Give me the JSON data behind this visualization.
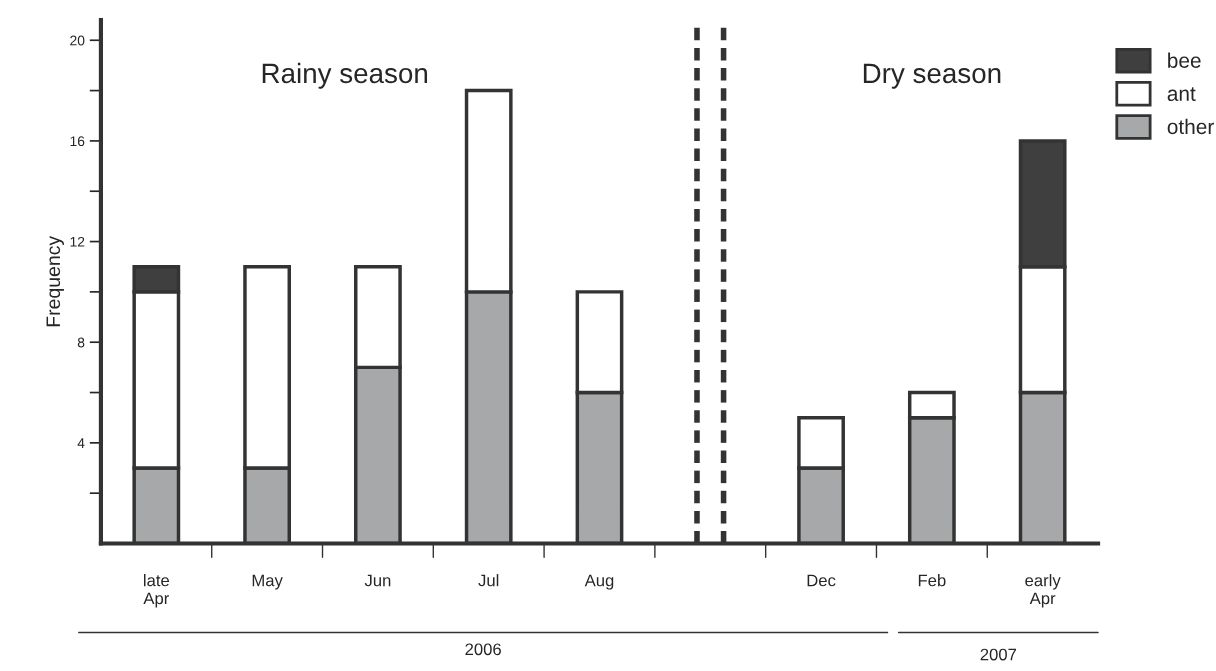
{
  "chart_data": {
    "type": "bar",
    "stacked": true,
    "ylabel": "Frequency",
    "categories": [
      "late\nApr",
      "May",
      "Jun",
      "Jul",
      "Aug",
      null,
      "Dec",
      "Feb",
      "early\nApr"
    ],
    "series": [
      {
        "name": "other",
        "color": "#a7a8aa",
        "values": [
          3,
          3,
          7,
          10,
          6,
          null,
          3,
          5,
          6
        ]
      },
      {
        "name": "ant",
        "color": "#ffffff",
        "values": [
          7,
          8,
          4,
          8,
          4,
          null,
          2,
          1,
          5
        ]
      },
      {
        "name": "bee",
        "color": "#3f3f3f",
        "values": [
          1,
          null,
          null,
          null,
          null,
          null,
          null,
          null,
          5
        ]
      }
    ],
    "ylim": [
      0,
      20.8
    ],
    "yticks": [
      {
        "value": 2,
        "label": null
      },
      4,
      {
        "value": 6,
        "label": null
      },
      8,
      {
        "value": 10,
        "label": null
      },
      12,
      {
        "value": 14,
        "label": null
      },
      16,
      {
        "value": 18,
        "label": null
      },
      20
    ],
    "annotations": [
      "Rainy season",
      "Dry season",
      "2006",
      "2007"
    ],
    "ref_lines": [
      {
        "axis": "x",
        "value": null,
        "line_style": "dashed",
        "color": "#333333"
      }
    ],
    "legend": "top right",
    "grid": false
  }
}
